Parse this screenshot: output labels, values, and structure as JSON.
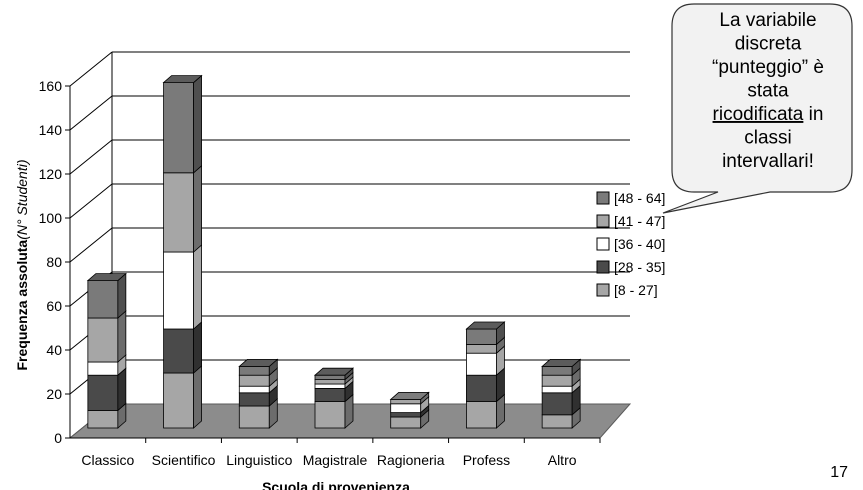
{
  "page": {
    "number": "17"
  },
  "callout": {
    "lines": [
      {
        "text": "La variabile"
      },
      {
        "text": "discreta"
      },
      {
        "text": "“punteggio” è"
      },
      {
        "text": "stata"
      },
      {
        "text": "ricodificata",
        "suffix": " in",
        "underline": true
      },
      {
        "text": "classi"
      },
      {
        "text": "intervallari!"
      }
    ]
  },
  "chart_data": {
    "type": "bar",
    "stacked": true,
    "three_d": true,
    "title": "",
    "xlabel": "Scuola di provenienza",
    "ylabel": "Frequenza assoluta",
    "ylabel_italic": "(N° Studenti)",
    "ylim": [
      0,
      160
    ],
    "yticks": [
      "0",
      "20",
      "40",
      "60",
      "80",
      "100",
      "120",
      "140",
      "160"
    ],
    "grid": true,
    "legend_position": "right",
    "categories": [
      "Classico",
      "Scientifico",
      "Linguistico",
      "Magistrale",
      "Ragioneria",
      "Profess",
      "Altro"
    ],
    "series": [
      {
        "name": "[8 - 27]",
        "color": "#a6a6a6",
        "values": [
          8,
          25,
          10,
          12,
          5,
          12,
          6
        ]
      },
      {
        "name": "[28 - 35]",
        "color": "#4a4a4a",
        "values": [
          16,
          20,
          6,
          6,
          2,
          12,
          10
        ]
      },
      {
        "name": "[36 - 40]",
        "color": "#ffffff",
        "values": [
          6,
          35,
          3,
          2,
          4,
          10,
          3
        ]
      },
      {
        "name": "[41 - 47]",
        "color": "#a6a6a6",
        "values": [
          20,
          36,
          5,
          2,
          2,
          4,
          5
        ]
      },
      {
        "name": "[48 - 64]",
        "color": "#7a7a7a",
        "values": [
          17,
          41,
          4,
          2,
          0,
          7,
          4
        ]
      }
    ]
  }
}
